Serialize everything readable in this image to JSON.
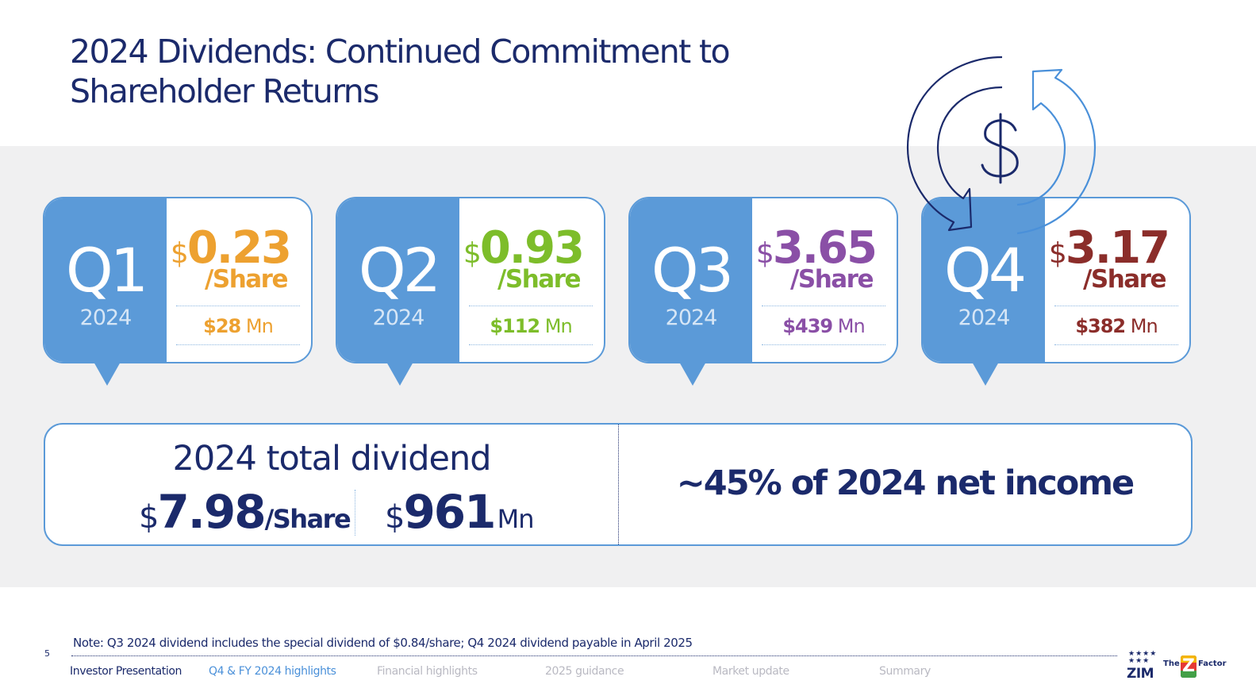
{
  "title": "2024 Dividends: Continued Commitment to Shareholder Returns",
  "icons": {
    "cycle": "dollar-cycle-icon"
  },
  "colors": {
    "brand_blue": "#5b9ad8",
    "navy": "#1b2a6b",
    "q1": "#eda130",
    "q2": "#7dbd2a",
    "q3": "#8a4fa6",
    "q4": "#8b2d2a"
  },
  "quarters": [
    {
      "label": "Q1",
      "year": "2024",
      "currency": "$",
      "per_share": "0.23",
      "per_share_unit": "/Share",
      "total_currency": "$",
      "total": "28",
      "total_unit": "Mn"
    },
    {
      "label": "Q2",
      "year": "2024",
      "currency": "$",
      "per_share": "0.93",
      "per_share_unit": "/Share",
      "total_currency": "$",
      "total": "112",
      "total_unit": "Mn"
    },
    {
      "label": "Q3",
      "year": "2024",
      "currency": "$",
      "per_share": "3.65",
      "per_share_unit": "/Share",
      "total_currency": "$",
      "total": "439",
      "total_unit": "Mn"
    },
    {
      "label": "Q4",
      "year": "2024",
      "currency": "$",
      "per_share": "3.17",
      "per_share_unit": "/Share",
      "total_currency": "$",
      "total": "382",
      "total_unit": "Mn"
    }
  ],
  "total": {
    "title": "2024 total dividend",
    "per_share_currency": "$",
    "per_share": "7.98",
    "per_share_unit": "/Share",
    "amount_currency": "$",
    "amount": "961",
    "amount_unit": "Mn",
    "net_income_text": "~45% of 2024 net income"
  },
  "note": "Note: Q3 2024 dividend includes the special dividend of $0.84/share; Q4 2024 dividend payable in April 2025",
  "page_number": "5",
  "footer_nav": [
    "Investor Presentation",
    "Q4 & FY 2024 highlights",
    "Financial highlights",
    "2025 guidance",
    "Market update",
    "Summary"
  ],
  "logo": {
    "stars": "★★★★ ★★★",
    "name": "ZIM",
    "the": "The",
    "z": "Z",
    "factor": "Factor"
  }
}
